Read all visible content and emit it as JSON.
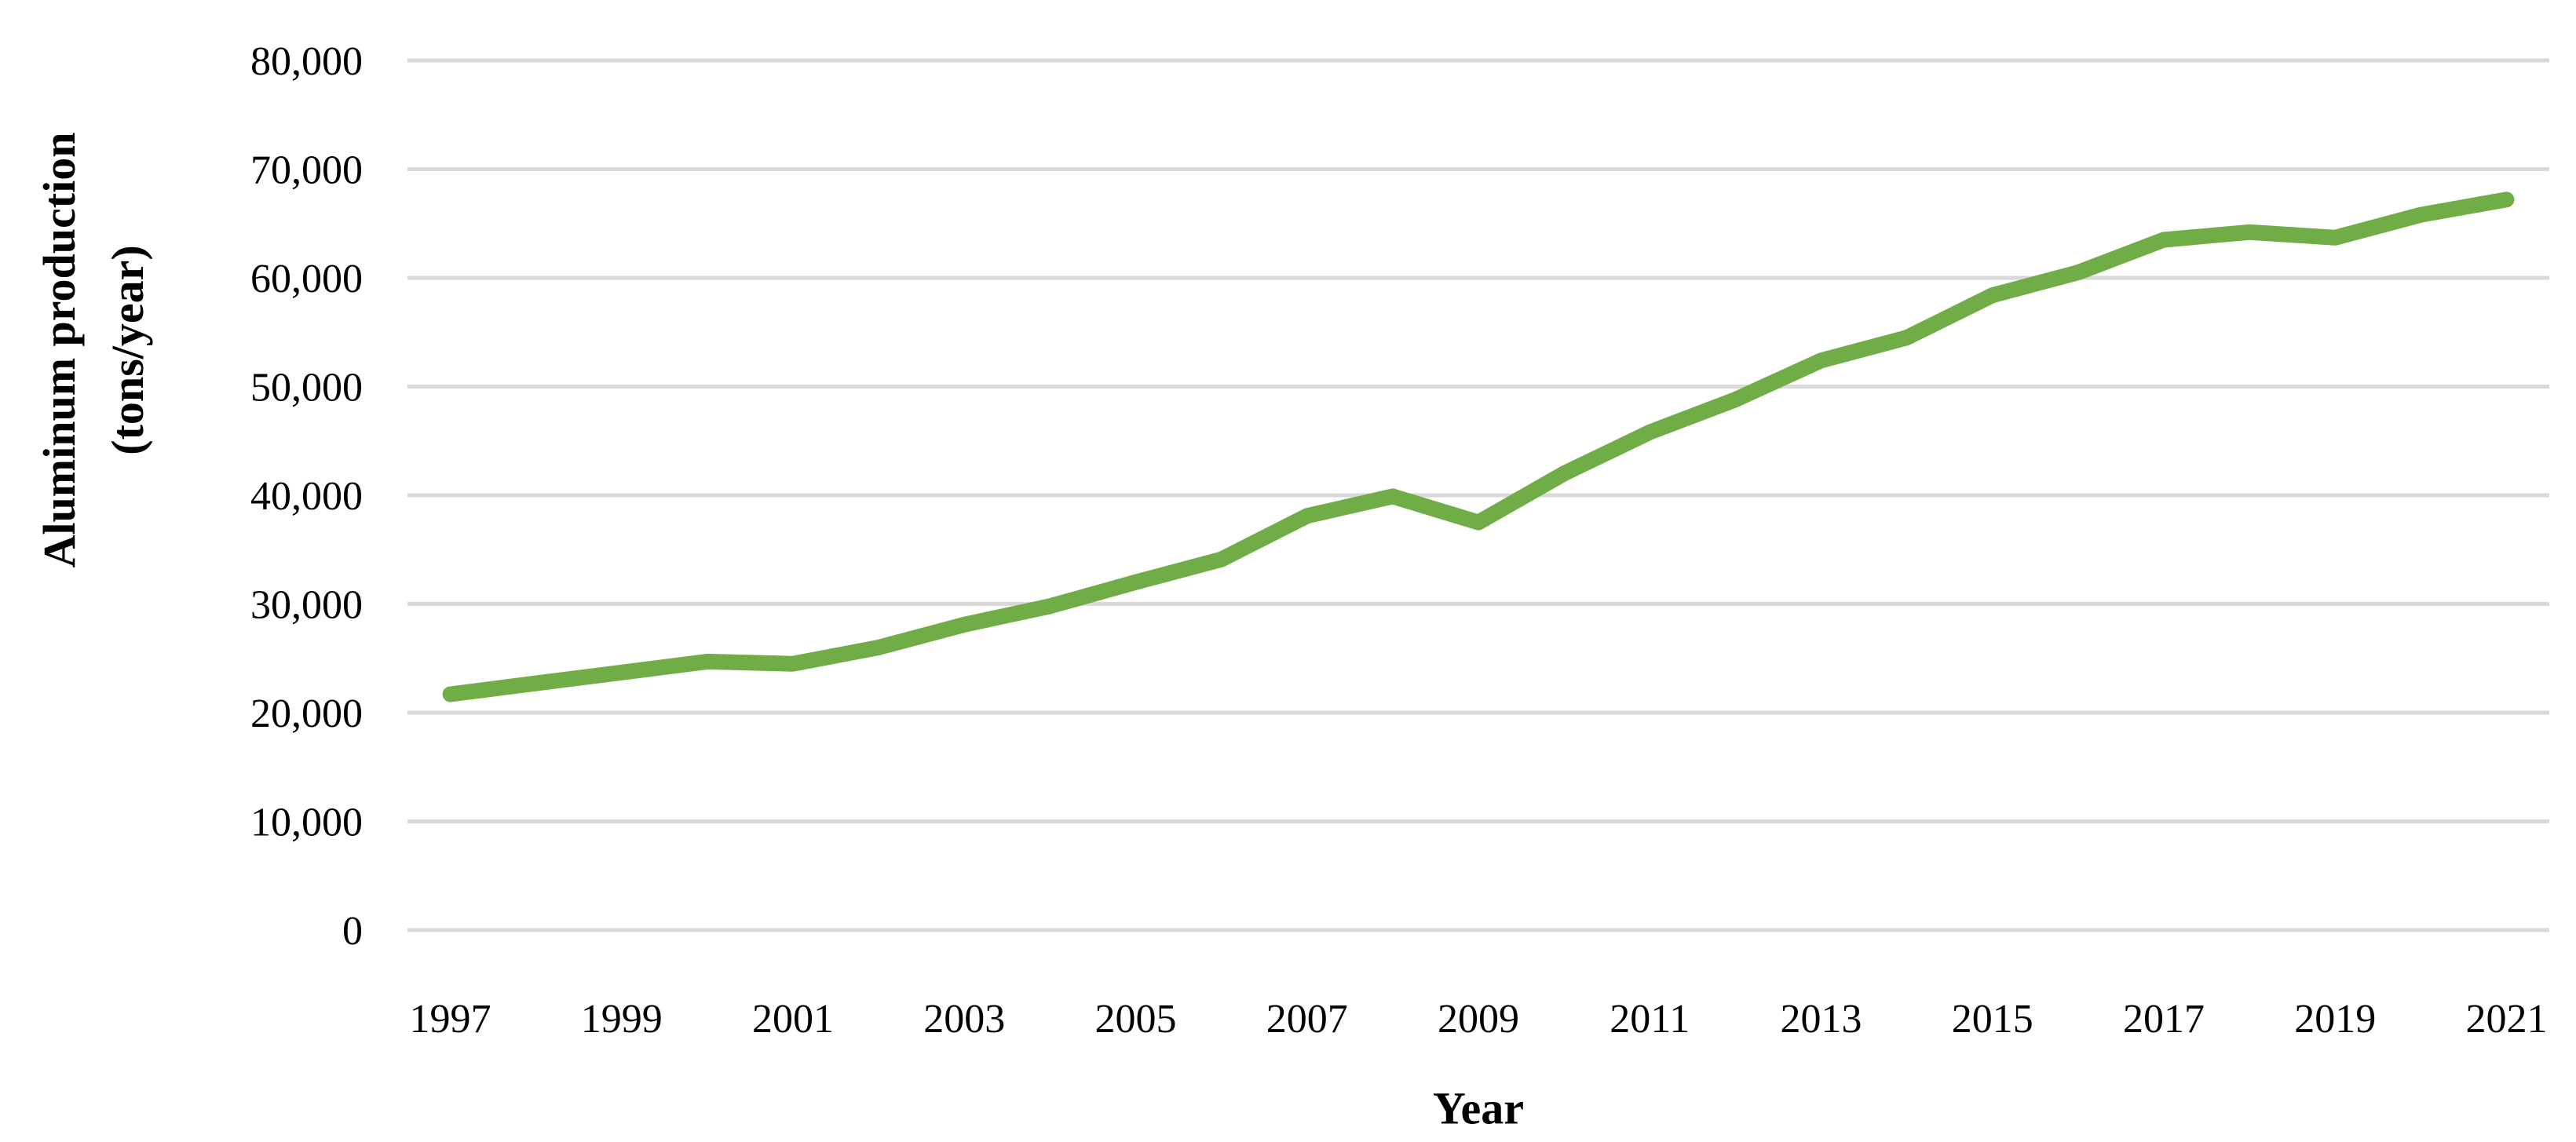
{
  "chart_data": {
    "type": "line",
    "title": "",
    "xlabel": "Year",
    "ylabel": "Aluminum production (tons/year)",
    "ylabel_line1": "Aluminum production",
    "ylabel_line2": "(tons/year)",
    "x": [
      1997,
      1998,
      1999,
      2000,
      2001,
      2002,
      2003,
      2004,
      2005,
      2006,
      2007,
      2008,
      2009,
      2010,
      2011,
      2012,
      2013,
      2014,
      2015,
      2016,
      2017,
      2018,
      2019,
      2020,
      2021
    ],
    "series": [
      {
        "name": "Aluminum production (tons/year)",
        "color": "#70AD47",
        "values": [
          21700,
          22700,
          23700,
          24700,
          24500,
          26000,
          28100,
          29800,
          32000,
          34100,
          38100,
          39900,
          37500,
          42000,
          45800,
          48800,
          52400,
          54500,
          58400,
          60500,
          63500,
          64200,
          63700,
          65800,
          67200
        ]
      }
    ],
    "ylim": [
      0,
      80000
    ],
    "ytick_step": 10000,
    "ytick_labels": [
      "0",
      "10,000",
      "20,000",
      "30,000",
      "40,000",
      "50,000",
      "60,000",
      "70,000",
      "80,000"
    ],
    "xtick_labels": [
      "1997",
      "1999",
      "2001",
      "2003",
      "2005",
      "2007",
      "2009",
      "2011",
      "2013",
      "2015",
      "2017",
      "2019",
      "2021"
    ],
    "grid": "horizontal",
    "gridline_color": "#D9D9D9",
    "text_color": "#000000",
    "legend": "none"
  }
}
